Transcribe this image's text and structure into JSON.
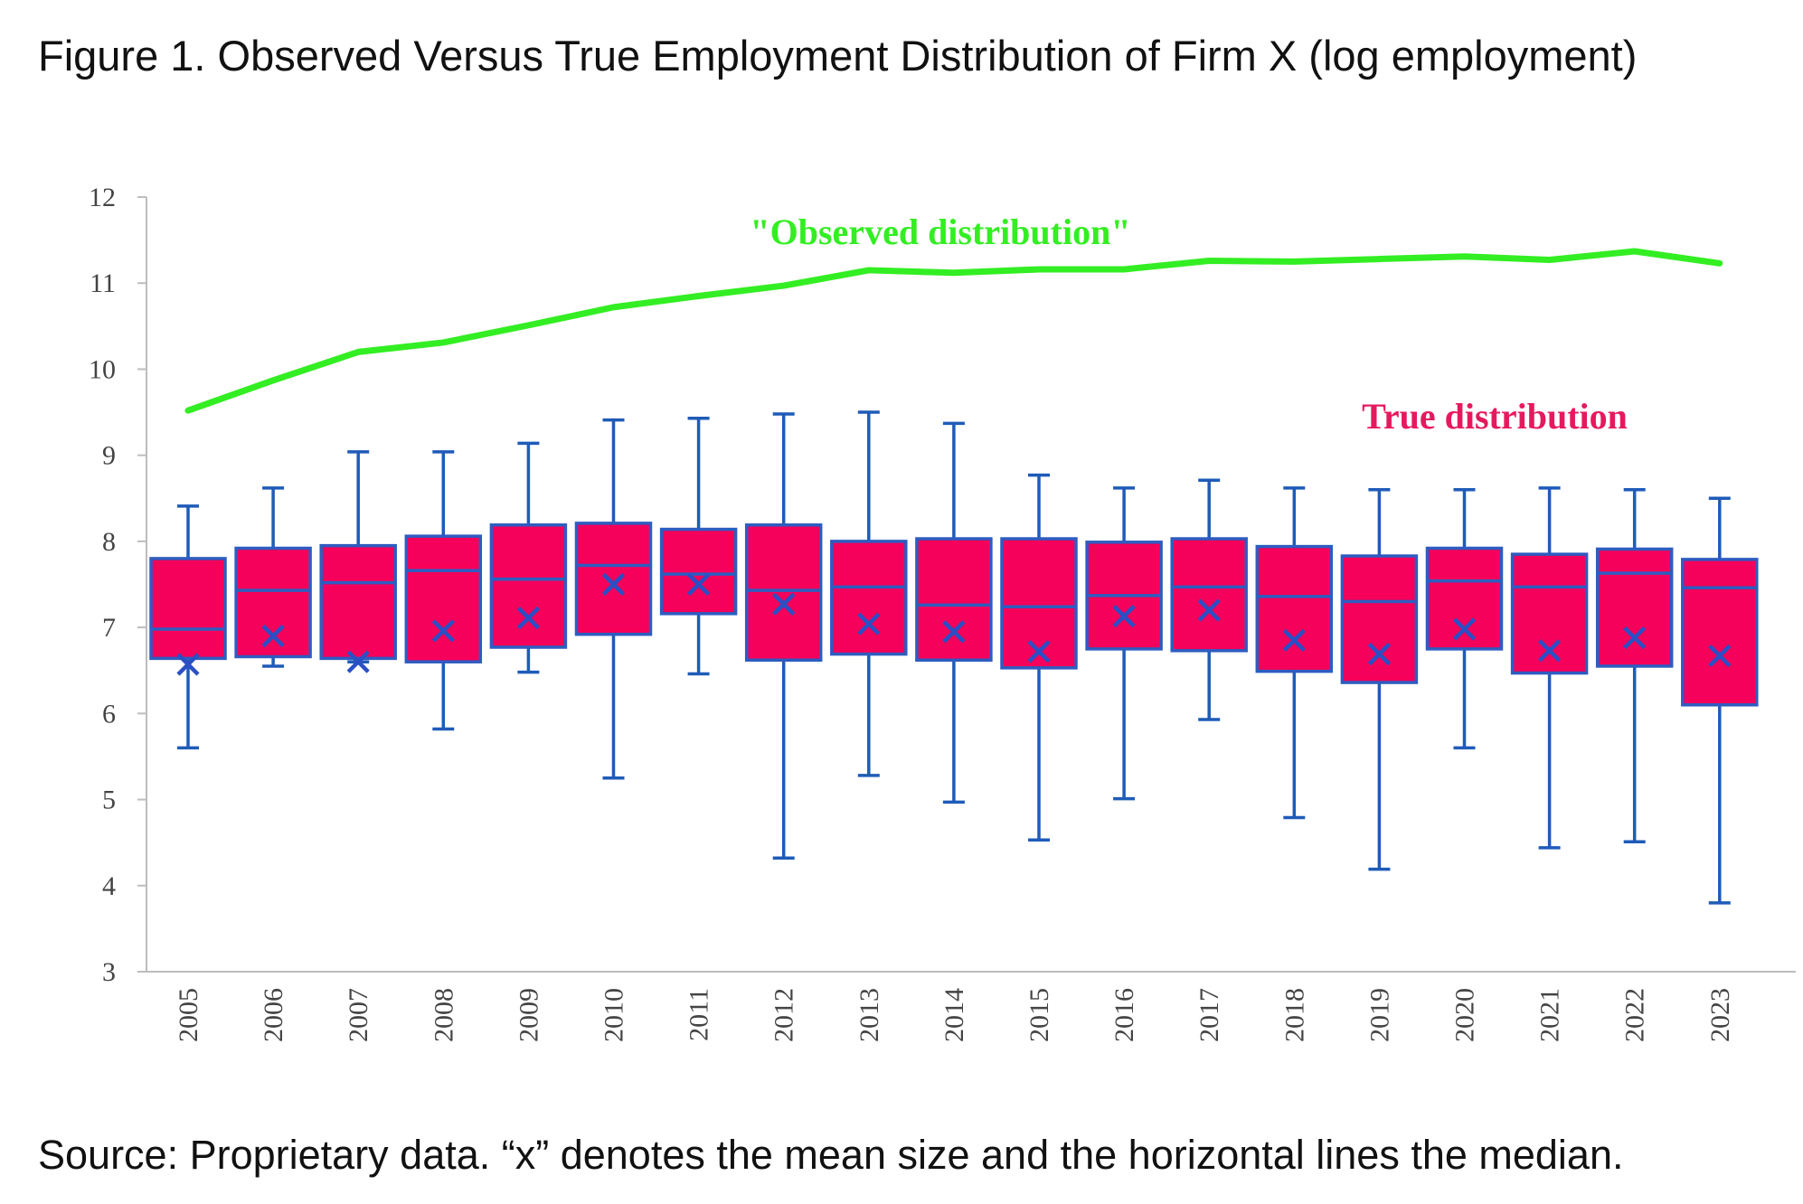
{
  "title": "Figure 1. Observed Versus True Employment Distribution of Firm X (log employment)",
  "source": "Source: Proprietary data. “x” denotes the mean size and the horizontal lines the median.",
  "colors": {
    "observed_line": "#33ee22",
    "box_fill": "#f5005a",
    "box_stroke": "#2e5cc0",
    "whisker": "#1f5bb8",
    "mean_marker": "#2b4fc4",
    "true_label": "#e6195f",
    "axis": "#bdbdbd"
  },
  "chart_data": {
    "type": "box",
    "title": "Figure 1. Observed Versus True Employment Distribution of Firm X (log employment)",
    "xlabel": "",
    "ylabel": "",
    "ylim": [
      3,
      12
    ],
    "yticks": [
      3,
      4,
      5,
      6,
      7,
      8,
      9,
      10,
      11,
      12
    ],
    "grid": false,
    "categories": [
      "2005",
      "2006",
      "2007",
      "2008",
      "2009",
      "2010",
      "2011",
      "2012",
      "2013",
      "2014",
      "2015",
      "2016",
      "2017",
      "2018",
      "2019",
      "2020",
      "2021",
      "2022",
      "2023"
    ],
    "observed": {
      "label": "\"Observed distribution\"",
      "values": [
        9.52,
        9.87,
        10.2,
        10.31,
        10.51,
        10.72,
        10.85,
        10.97,
        11.15,
        11.12,
        11.16,
        11.16,
        11.26,
        11.25,
        11.28,
        11.31,
        11.27,
        11.37,
        11.23
      ]
    },
    "true_distribution": {
      "label": "True distribution",
      "min": [
        5.6,
        6.55,
        6.6,
        5.82,
        6.48,
        5.25,
        6.46,
        4.32,
        5.28,
        4.97,
        4.53,
        5.01,
        5.93,
        4.79,
        4.19,
        5.6,
        4.44,
        4.51,
        3.8
      ],
      "q1": [
        6.64,
        6.66,
        6.64,
        6.6,
        6.77,
        6.92,
        7.16,
        6.62,
        6.69,
        6.62,
        6.53,
        6.75,
        6.73,
        6.49,
        6.36,
        6.75,
        6.47,
        6.55,
        6.1
      ],
      "median": [
        6.98,
        7.43,
        7.52,
        7.66,
        7.56,
        7.72,
        7.62,
        7.43,
        7.47,
        7.26,
        7.24,
        7.37,
        7.47,
        7.36,
        7.3,
        7.54,
        7.47,
        7.63,
        7.46
      ],
      "q3": [
        7.8,
        7.92,
        7.95,
        8.06,
        8.19,
        8.21,
        8.14,
        8.19,
        8.0,
        8.03,
        8.03,
        7.99,
        8.03,
        7.94,
        7.83,
        7.92,
        7.85,
        7.91,
        7.79
      ],
      "max": [
        8.41,
        8.62,
        9.04,
        9.04,
        9.14,
        9.41,
        9.43,
        9.48,
        9.5,
        9.37,
        8.77,
        8.62,
        8.71,
        8.62,
        8.6,
        8.6,
        8.62,
        8.6,
        8.5
      ],
      "mean": [
        6.57,
        6.9,
        6.6,
        6.96,
        7.11,
        7.5,
        7.5,
        7.27,
        7.04,
        6.95,
        6.72,
        7.13,
        7.2,
        6.85,
        6.69,
        6.98,
        6.73,
        6.88,
        6.67
      ]
    }
  }
}
